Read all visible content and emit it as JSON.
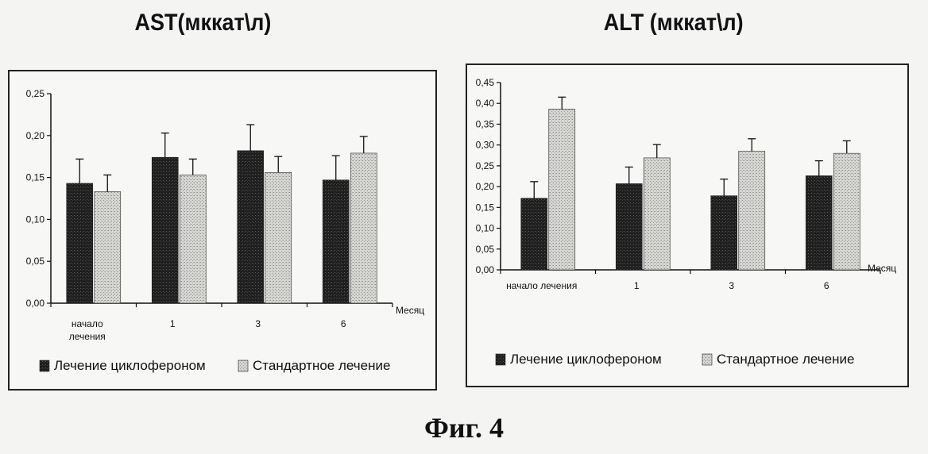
{
  "chart_data": [
    {
      "type": "bar",
      "title": "AST(мккат\\л)",
      "xlabel": "Месяц",
      "ylabel": "",
      "categories": [
        "начало лечения",
        "1",
        "3",
        "6"
      ],
      "series": [
        {
          "name": "Лечение циклофероном",
          "values": [
            0.143,
            0.174,
            0.182,
            0.147
          ],
          "errors": [
            0.029,
            0.029,
            0.031,
            0.029
          ],
          "color": "#2b2b2b"
        },
        {
          "name": "Стандартное лечение",
          "values": [
            0.133,
            0.153,
            0.156,
            0.179
          ],
          "errors": [
            0.02,
            0.019,
            0.019,
            0.02
          ],
          "color": "#c9c9c6"
        }
      ],
      "ylim": [
        0,
        0.25
      ],
      "yticks": [
        "0,00",
        "0,05",
        "0,10",
        "0,15",
        "0,20",
        "0,25"
      ],
      "grid": false,
      "legend": "bottom"
    },
    {
      "type": "bar",
      "title": "ALT (мккат\\л)",
      "xlabel": "Месяц",
      "ylabel": "",
      "categories": [
        "начало лечения",
        "1",
        "3",
        "6"
      ],
      "series": [
        {
          "name": "Лечение циклофероном",
          "values": [
            0.172,
            0.207,
            0.178,
            0.226
          ],
          "errors": [
            0.04,
            0.04,
            0.04,
            0.036
          ],
          "color": "#2b2b2b"
        },
        {
          "name": "Стандартное лечение",
          "values": [
            0.386,
            0.269,
            0.285,
            0.28
          ],
          "errors": [
            0.029,
            0.032,
            0.03,
            0.03
          ],
          "color": "#c9c9c6"
        }
      ],
      "ylim": [
        0,
        0.45
      ],
      "yticks": [
        "0,00",
        "0,05",
        "0,10",
        "0,15",
        "0,20",
        "0,25",
        "0,30",
        "0,35",
        "0,40",
        "0,45"
      ],
      "grid": false,
      "legend": "bottom"
    }
  ],
  "caption": "Фиг. 4"
}
